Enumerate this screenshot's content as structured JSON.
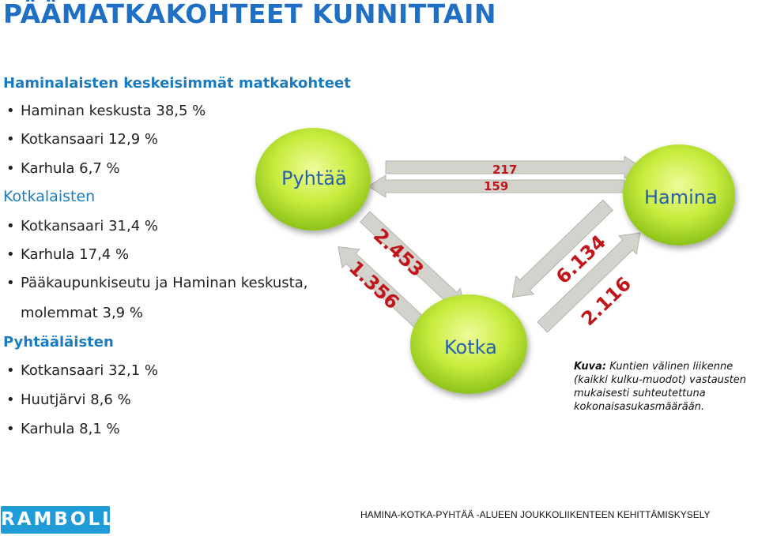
{
  "title": "PÄÄMATKAKOHTEET KUNNITTAIN",
  "haminalaiset": {
    "heading": "Haminalaisten keskeisimmät matkakohteet",
    "items": [
      "Haminan keskusta 38,5 %",
      "Kotkansaari 12,9 %",
      "Karhula 6,7 %"
    ]
  },
  "kotkalaiset": {
    "heading": "Kotkalaisten",
    "items": [
      "Kotkansaari 31,4 %",
      "Karhula 17,4 %",
      "Pääkaupunkiseutu ja Haminan keskusta,"
    ],
    "continuation": "molemmat 3,9 %"
  },
  "pyhtaalaiset": {
    "heading": "Pyhtääläisten",
    "items": [
      "Kotkansaari 32,1 %",
      "Huutjärvi 8,6 %",
      "Karhula 8,1 %"
    ]
  },
  "nodes": {
    "pyhtaa": "Pyhtää",
    "hamina": "Hamina",
    "kotka": "Kotka"
  },
  "flows": {
    "pyhtaa_hamina_top": "217",
    "pyhtaa_hamina_bottom": "159",
    "pyhtaa_kotka_outer": "2.453",
    "pyhtaa_kotka_inner": "1.356",
    "hamina_kotka_upper": "6.134",
    "hamina_kotka_lower": "2.116"
  },
  "colors": {
    "title": "#1f6fc4",
    "heading": "#1a7bc0",
    "node_fill": "#c5ec3a",
    "node_text": "#2860a8",
    "flow_number": "#c0161b",
    "arrow": "#d3d3cd",
    "logo": "#1f9bd7"
  },
  "caption": {
    "label": "Kuva:",
    "text": "Kuntien välinen liikenne (kaikki kulku-muodot) vastausten mukaisesti suhteutettuna kokonaisasukasmäärään."
  },
  "footer": "HAMINA-KOTKA-PYHTÄÄ -ALUEEN JOUKKOLIIKENTEEN KEHITTÄMISKYSELY",
  "logo": "RAMBOLL"
}
